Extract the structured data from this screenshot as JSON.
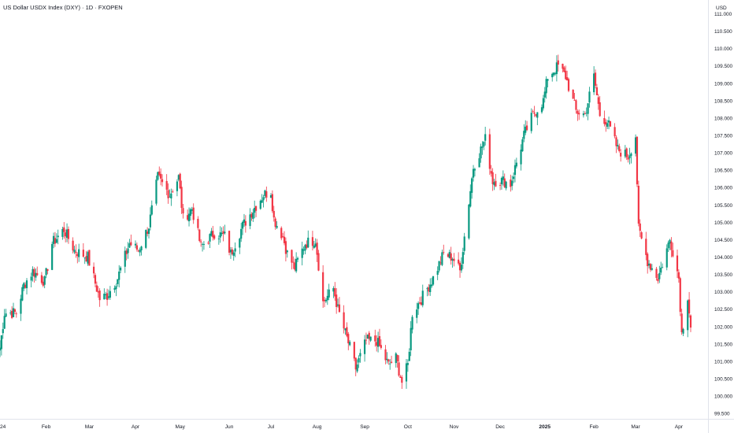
{
  "title": "US Dollar USDX Index (DXY) · 1D · FXOPEN",
  "currency": "USD",
  "colors": {
    "up": "#089981",
    "down": "#f23645",
    "axis": "#e0e3eb",
    "text": "#131722",
    "background": "#ffffff"
  },
  "chart_data": {
    "type": "candlestick",
    "title": "US Dollar USDX Index (DXY) · 1D · FXOPEN",
    "ylim": [
      99.35,
      111.4
    ],
    "y_ticks": [
      "99.500",
      "100.000",
      "100.500",
      "101.000",
      "101.500",
      "102.000",
      "102.500",
      "103.000",
      "103.500",
      "104.000",
      "104.500",
      "105.000",
      "105.500",
      "106.000",
      "106.500",
      "107.000",
      "107.500",
      "108.000",
      "108.500",
      "109.000",
      "109.500",
      "110.000",
      "110.500",
      "111.000"
    ],
    "x_labels": [
      "24",
      "Feb",
      "Mar",
      "Apr",
      "May",
      "Jun",
      "Jul",
      "Aug",
      "Sep",
      "Oct",
      "Nov",
      "Dec",
      "2025",
      "Feb",
      "Mar",
      "Apr"
    ],
    "x_bold": [
      "2025"
    ],
    "x_label_dates": [
      "2024-01-01",
      "2024-02-01",
      "2024-03-01",
      "2024-04-01",
      "2024-05-01",
      "2024-06-03",
      "2024-07-01",
      "2024-08-01",
      "2024-09-02",
      "2024-10-01",
      "2024-11-01",
      "2024-12-02",
      "2025-01-01",
      "2025-02-03",
      "2025-03-03",
      "2025-04-01"
    ],
    "date_range": [
      "2024-01-01",
      "2025-04-09"
    ],
    "anchors": [
      [
        "2024-01-01",
        101.4
      ],
      [
        "2024-01-04",
        102.4
      ],
      [
        "2024-01-12",
        102.4
      ],
      [
        "2024-01-17",
        103.2
      ],
      [
        "2024-01-23",
        103.6
      ],
      [
        "2024-01-31",
        103.3
      ],
      [
        "2024-02-05",
        104.4
      ],
      [
        "2024-02-13",
        104.8
      ],
      [
        "2024-02-20",
        104.2
      ],
      [
        "2024-02-29",
        104.0
      ],
      [
        "2024-03-08",
        102.8
      ],
      [
        "2024-03-13",
        102.9
      ],
      [
        "2024-03-20",
        103.4
      ],
      [
        "2024-03-28",
        104.4
      ],
      [
        "2024-04-03",
        104.2
      ],
      [
        "2024-04-10",
        104.9
      ],
      [
        "2024-04-16",
        106.3
      ],
      [
        "2024-04-24",
        105.8
      ],
      [
        "2024-04-30",
        106.3
      ],
      [
        "2024-05-03",
        105.1
      ],
      [
        "2024-05-09",
        105.4
      ],
      [
        "2024-05-15",
        104.3
      ],
      [
        "2024-05-24",
        104.7
      ],
      [
        "2024-05-31",
        104.6
      ],
      [
        "2024-06-04",
        104.1
      ],
      [
        "2024-06-12",
        104.9
      ],
      [
        "2024-06-18",
        105.3
      ],
      [
        "2024-06-26",
        105.8
      ],
      [
        "2024-07-01",
        105.9
      ],
      [
        "2024-07-03",
        105.1
      ],
      [
        "2024-07-09",
        104.6
      ],
      [
        "2024-07-12",
        104.1
      ],
      [
        "2024-07-17",
        103.7
      ],
      [
        "2024-07-24",
        104.4
      ],
      [
        "2024-07-31",
        104.5
      ],
      [
        "2024-08-05",
        102.7
      ],
      [
        "2024-08-12",
        103.1
      ],
      [
        "2024-08-15",
        102.5
      ],
      [
        "2024-08-23",
        101.4
      ],
      [
        "2024-08-27",
        100.8
      ],
      [
        "2024-09-03",
        101.6
      ],
      [
        "2024-09-10",
        101.6
      ],
      [
        "2024-09-18",
        100.9
      ],
      [
        "2024-09-23",
        101.1
      ],
      [
        "2024-09-27",
        100.4
      ],
      [
        "2024-10-01",
        100.9
      ],
      [
        "2024-10-04",
        102.4
      ],
      [
        "2024-10-10",
        102.8
      ],
      [
        "2024-10-18",
        103.4
      ],
      [
        "2024-10-25",
        104.1
      ],
      [
        "2024-10-31",
        104.0
      ],
      [
        "2024-11-05",
        103.6
      ],
      [
        "2024-11-08",
        104.6
      ],
      [
        "2024-11-14",
        106.6
      ],
      [
        "2024-11-22",
        107.4
      ],
      [
        "2024-11-27",
        106.2
      ],
      [
        "2024-12-04",
        106.2
      ],
      [
        "2024-12-09",
        106.1
      ],
      [
        "2024-12-18",
        107.5
      ],
      [
        "2024-12-24",
        108.1
      ],
      [
        "2024-12-31",
        108.5
      ],
      [
        "2025-01-03",
        109.2
      ],
      [
        "2025-01-10",
        109.5
      ],
      [
        "2025-01-15",
        109.2
      ],
      [
        "2025-01-22",
        108.2
      ],
      [
        "2025-01-28",
        108.1
      ],
      [
        "2025-02-03",
        109.2
      ],
      [
        "2025-02-07",
        108.1
      ],
      [
        "2025-02-12",
        107.9
      ],
      [
        "2025-02-19",
        107.1
      ],
      [
        "2025-02-26",
        106.9
      ],
      [
        "2025-03-03",
        107.5
      ],
      [
        "2025-03-05",
        104.8
      ],
      [
        "2025-03-11",
        103.9
      ],
      [
        "2025-03-18",
        103.4
      ],
      [
        "2025-03-26",
        104.5
      ],
      [
        "2025-03-28",
        104.2
      ],
      [
        "2025-04-01",
        103.4
      ],
      [
        "2025-04-03",
        101.8
      ],
      [
        "2025-04-07",
        102.9
      ],
      [
        "2025-04-09",
        102.0
      ]
    ]
  }
}
